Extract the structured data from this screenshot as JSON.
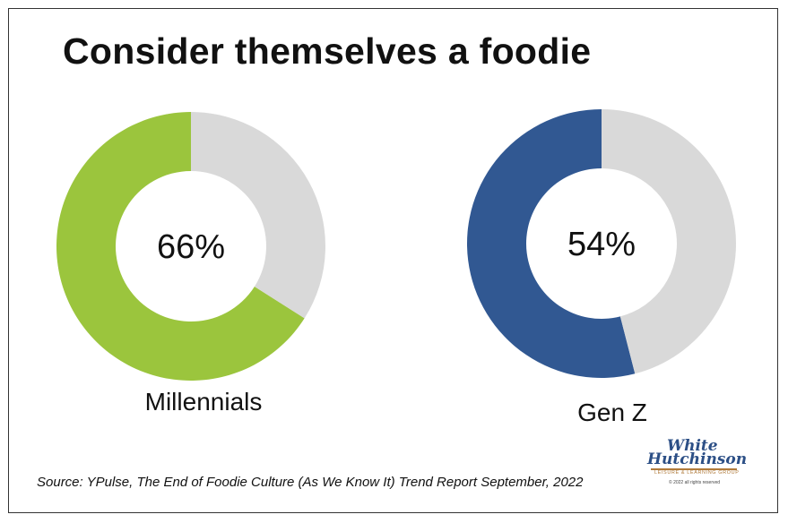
{
  "chart_data": [
    {
      "type": "pie",
      "title": "Consider themselves a foodie",
      "categories": [
        "Millennials"
      ],
      "values": [
        66
      ],
      "center_label": "66%",
      "category_label": "Millennials",
      "colors": {
        "value": "#9bc53d",
        "remainder": "#d9d9d9"
      }
    },
    {
      "type": "pie",
      "title": "Consider themselves a foodie",
      "categories": [
        "Gen Z"
      ],
      "values": [
        54
      ],
      "center_label": "54%",
      "category_label": "Gen Z",
      "colors": {
        "value": "#315892",
        "remainder": "#d9d9d9"
      }
    }
  ],
  "title": "Consider themselves a foodie",
  "source": "Source: YPulse, The End of Foodie Culture (As We Know It) Trend Report September, 2022",
  "logo": {
    "line1": "White",
    "line2": "Hutchinson",
    "tagline": "LEISURE & LEARNING GROUP",
    "copyright": "© 2022 all rights reserved"
  }
}
